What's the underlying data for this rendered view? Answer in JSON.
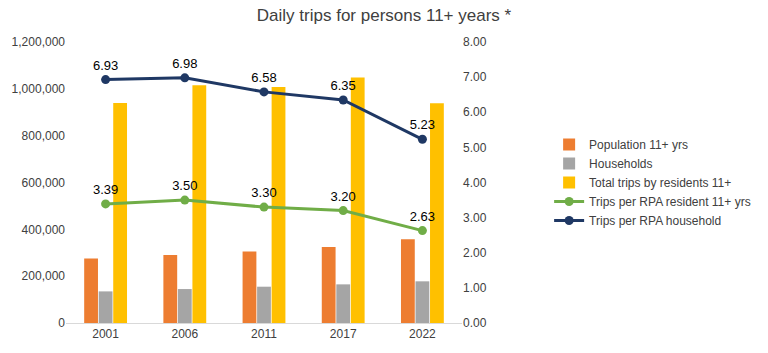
{
  "chart_data": {
    "type": "bar",
    "title": "Daily trips for persons 11+ years *",
    "categories": [
      "2001",
      "2006",
      "2011",
      "2017",
      "2022"
    ],
    "series": [
      {
        "name": "Population 11+ yrs",
        "type": "bar",
        "color": "#ED7D31",
        "values": [
          275000,
          290000,
          305000,
          325000,
          358000
        ]
      },
      {
        "name": "Households",
        "type": "bar",
        "color": "#A5A5A5",
        "values": [
          135000,
          145000,
          155000,
          165000,
          178000
        ]
      },
      {
        "name": "Total trips by residents 11+",
        "type": "bar",
        "color": "#FFC000",
        "values": [
          940000,
          1015000,
          1008000,
          1048000,
          938000
        ]
      },
      {
        "name": "Trips per RPA resident 11+ yrs",
        "type": "line",
        "axis": "y2",
        "color": "#70AD47",
        "marker": "circle",
        "data_labels": true,
        "values": [
          3.39,
          3.5,
          3.3,
          3.2,
          2.63
        ],
        "value_labels": [
          "3.39",
          "3.50",
          "3.30",
          "3.20",
          "2.63"
        ]
      },
      {
        "name": "Trips per RPA household",
        "type": "line",
        "axis": "y2",
        "color": "#1F3864",
        "marker": "circle",
        "data_labels": true,
        "values": [
          6.93,
          6.98,
          6.58,
          6.35,
          5.23
        ],
        "value_labels": [
          "6.93",
          "6.98",
          "6.58",
          "6.35",
          "5.23"
        ]
      }
    ],
    "ylim": [
      0,
      1200000
    ],
    "yticks": [
      0,
      {
        "value": 200000,
        "label": "200,000"
      },
      {
        "value": 400000,
        "label": "400,000"
      },
      {
        "value": 600000,
        "label": "600,000"
      },
      {
        "value": 800000,
        "label": "800,000"
      },
      {
        "value": 1000000,
        "label": "1,000,000"
      },
      {
        "value": 1200000,
        "label": "1,200,000"
      }
    ],
    "y2lim": [
      0,
      8
    ],
    "y2ticks": [
      {
        "value": 0,
        "label": "0.00"
      },
      {
        "value": 1,
        "label": "1.00"
      },
      {
        "value": 2,
        "label": "2.00"
      },
      {
        "value": 3,
        "label": "3.00"
      },
      {
        "value": 4,
        "label": "4.00"
      },
      {
        "value": 5,
        "label": "5.00"
      },
      {
        "value": 6,
        "label": "6.00"
      },
      {
        "value": 7,
        "label": "7.00"
      },
      {
        "value": 8,
        "label": "8.00"
      }
    ],
    "grid": false,
    "legend": "right"
  }
}
